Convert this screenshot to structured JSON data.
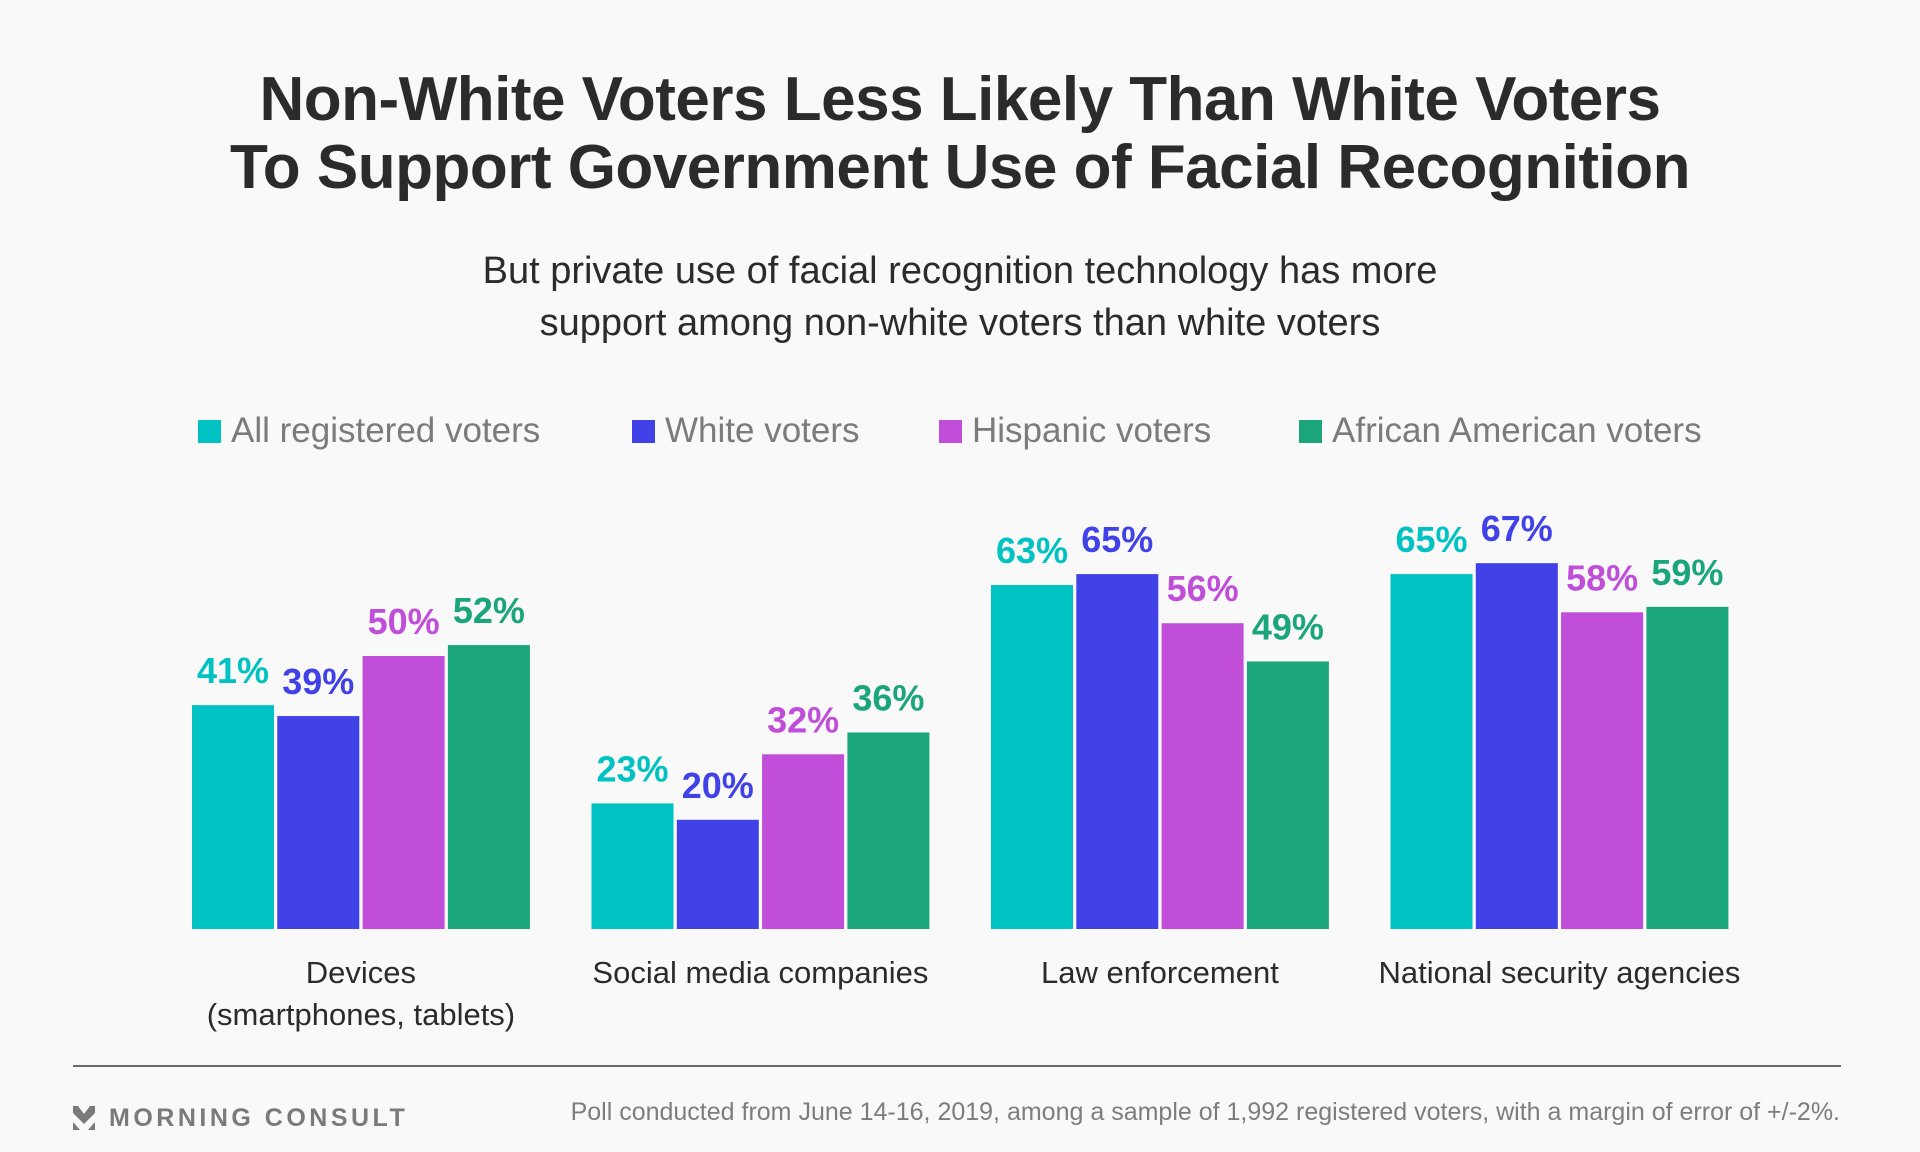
{
  "header": {
    "title_lines": [
      "Non-White Voters Less Likely Than White Voters",
      "To Support Government Use of Facial Recognition"
    ],
    "subtitle_lines": [
      "But private use of facial recognition technology has more",
      "support among non-white voters than white voters"
    ]
  },
  "legend": {
    "items": [
      {
        "label": "All registered voters",
        "color": "#00c2c2"
      },
      {
        "label": "White voters",
        "color": "#4141e8"
      },
      {
        "label": "Hispanic voters",
        "color": "#c04ed8"
      },
      {
        "label": "African American voters",
        "color": "#1ba57a"
      }
    ]
  },
  "chart_data": {
    "type": "bar",
    "title": "Non-White Voters Less Likely Than White Voters To Support Government Use of Facial Recognition",
    "subtitle": "But private use of facial recognition technology has more support among non-white voters than white voters",
    "categories": [
      [
        "Devices",
        "(smartphones, tablets)"
      ],
      [
        "Social media companies"
      ],
      [
        "Law enforcement"
      ],
      [
        "National security agencies"
      ]
    ],
    "series": [
      {
        "name": "All registered voters",
        "color": "#00c2c2",
        "values": [
          41,
          23,
          63,
          65
        ]
      },
      {
        "name": "White voters",
        "color": "#4141e8",
        "values": [
          39,
          20,
          65,
          67
        ]
      },
      {
        "name": "Hispanic voters",
        "color": "#c04ed8",
        "values": [
          50,
          32,
          56,
          58
        ]
      },
      {
        "name": "African American voters",
        "color": "#1ba57a",
        "values": [
          52,
          36,
          49,
          59
        ]
      }
    ],
    "value_suffix": "%",
    "xlabel": "",
    "ylabel": "",
    "ylim": [
      0,
      100
    ],
    "grid": false,
    "y_axis_visible": false,
    "legend_position": "top"
  },
  "footer": {
    "brand": "MORNING CONSULT",
    "note": "Poll conducted from June 14-16, 2019, among a sample of 1,992 registered voters, with a margin of error of +/-2%."
  }
}
